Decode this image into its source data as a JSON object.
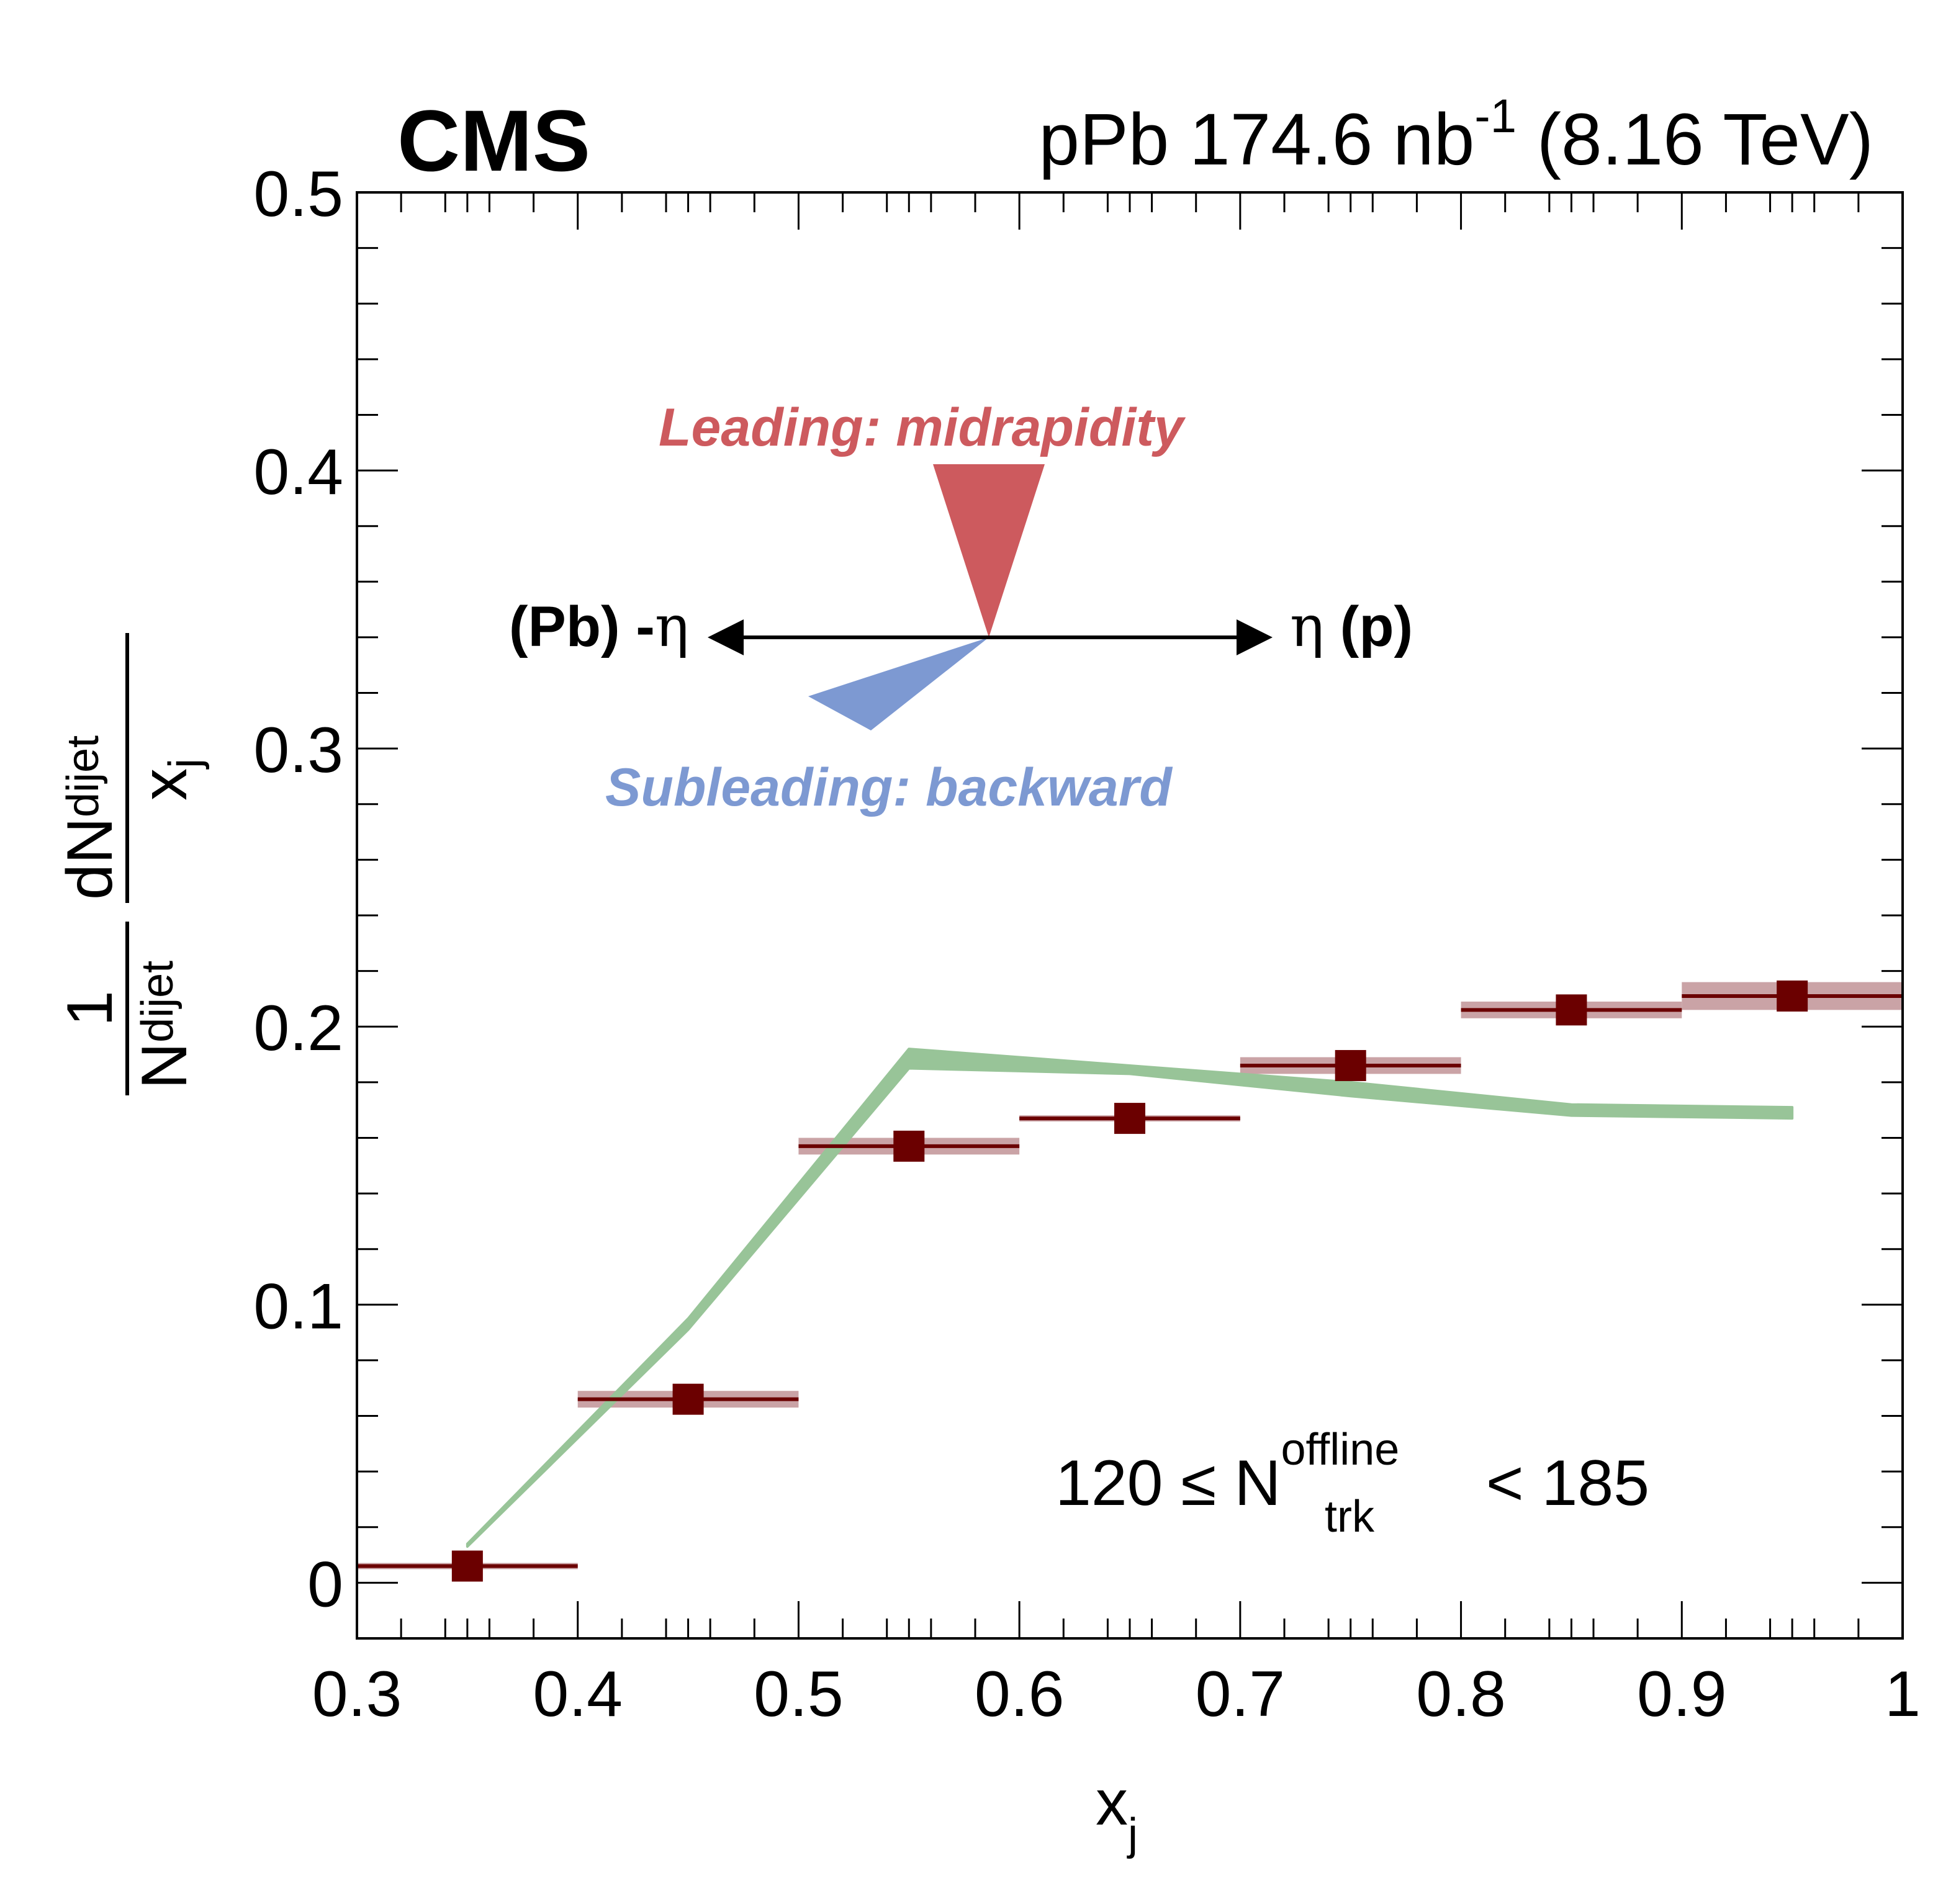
{
  "header": {
    "experiment": "CMS",
    "dataset_prefix": "pPb 174.6 nb",
    "dataset_sup": "-1",
    "dataset_suffix": " (8.16 TeV)"
  },
  "annotations": {
    "leading": "Leading: midrapidity",
    "subleading": "Subleading: backward",
    "left_arrow_label": "(Pb) -",
    "left_arrow_symbol": "η",
    "right_arrow_symbol": "η",
    "right_arrow_label": " (p)",
    "selection_lower": "120 ≤ N",
    "selection_sup": "offline",
    "selection_sub": "trk",
    "selection_upper": " < 185"
  },
  "colors": {
    "data": "#6b0000",
    "data_syst": "#caa3a6",
    "model_band": "#98c498",
    "leading": "#cd5a5e",
    "subleading": "#7d99d2"
  },
  "chart_data": {
    "type": "scatter",
    "xlabel": "x",
    "xlabel_sub": "j",
    "ylabel": {
      "frac1_num": "1",
      "frac1_den": "N",
      "frac1_den_sub": "dijet",
      "frac2_num": "dN",
      "frac2_num_sub": "dijet",
      "frac2_den": "x",
      "frac2_den_sub": "j"
    },
    "xlim": [
      0.3,
      1.0
    ],
    "ylim": [
      -0.02,
      0.5
    ],
    "x_ticks": [
      "0.3",
      "0.4",
      "0.5",
      "0.6",
      "0.7",
      "0.8",
      "0.9",
      "1"
    ],
    "y_ticks": [
      "0",
      "0.1",
      "0.2",
      "0.3",
      "0.4",
      "0.5"
    ],
    "grid": false,
    "series": [
      {
        "kind": "data",
        "x": [
          0.35,
          0.45,
          0.55,
          0.65,
          0.75,
          0.85,
          0.95
        ],
        "xerr": [
          0.05,
          0.05,
          0.05,
          0.05,
          0.05,
          0.05,
          0.05
        ],
        "y": [
          0.006,
          0.066,
          0.157,
          0.167,
          0.186,
          0.206,
          0.211
        ],
        "syst": [
          0.001,
          0.003,
          0.003,
          0.001,
          0.003,
          0.003,
          0.005
        ]
      },
      {
        "kind": "model_band",
        "x": [
          0.35,
          0.45,
          0.55,
          0.65,
          0.75,
          0.85,
          0.95
        ],
        "y_low": [
          0.013,
          0.091,
          0.185,
          0.183,
          0.175,
          0.168,
          0.167
        ],
        "y_high": [
          0.014,
          0.095,
          0.192,
          0.186,
          0.18,
          0.172,
          0.171
        ]
      }
    ]
  }
}
